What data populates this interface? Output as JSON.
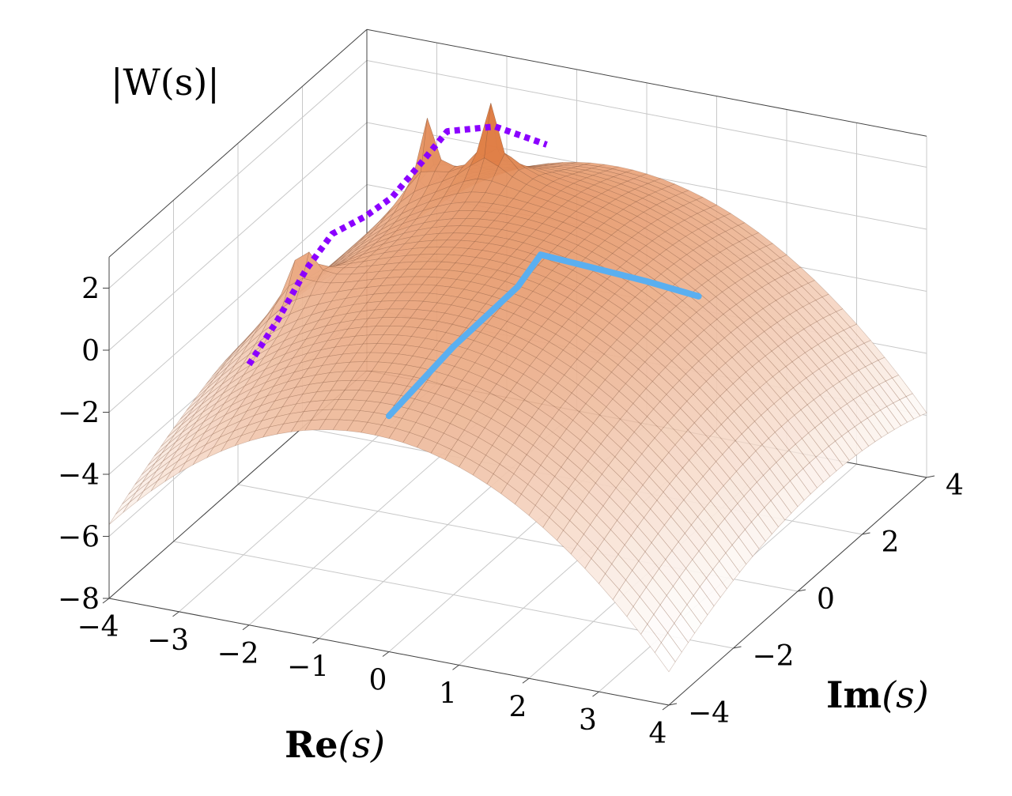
{
  "chart_data": {
    "type": "surface3d",
    "zlabel": "|W(s)|",
    "xlabel_bold": "Re",
    "xlabel_arg": "(s)",
    "ylabel_bold": "Im",
    "ylabel_arg": "(s)",
    "xlim": [
      -4,
      4
    ],
    "ylim": [
      -4,
      4
    ],
    "zlim": [
      -8,
      3
    ],
    "xticks": [
      "−4",
      "−3",
      "−2",
      "−1",
      "0",
      "1",
      "2",
      "3",
      "4"
    ],
    "yticks": [
      "−4",
      "−2",
      "0",
      "2",
      "4"
    ],
    "zticks": [
      "−8",
      "−6",
      "−4",
      "−2",
      "0",
      "2"
    ],
    "surface_colors": {
      "high": "#d9641f",
      "low": "#ffffff",
      "mesh": "#7a4a30"
    },
    "surface_peaks": [
      {
        "re": -2.9,
        "im": -0.4
      },
      {
        "re": -2.4,
        "im": 2.4
      },
      {
        "re": -1.4,
        "im": 2.2
      }
    ],
    "series": [
      {
        "style": "dotted",
        "color": "#8b00ff",
        "points": [
          {
            "re": -2.0,
            "im": -4.0,
            "z": 0.4
          },
          {
            "re": -2.05,
            "im": -3.0,
            "z": 0.9
          },
          {
            "re": -2.1,
            "im": -2.0,
            "z": 1.6
          },
          {
            "re": -2.1,
            "im": -1.2,
            "z": 2.0
          },
          {
            "re": -1.9,
            "im": -0.6,
            "z": 2.1
          },
          {
            "re": -1.8,
            "im": 0.0,
            "z": 2.2
          },
          {
            "re": -1.75,
            "im": 0.8,
            "z": 2.6
          },
          {
            "re": -1.7,
            "im": 1.5,
            "z": 3.0
          },
          {
            "re": -1.2,
            "im": 1.9,
            "z": 3.0
          },
          {
            "re": -0.6,
            "im": 2.2,
            "z": 2.4
          }
        ]
      },
      {
        "style": "solid",
        "color": "#5aaff0",
        "points": [
          {
            "re": 0.0,
            "im": -4.0,
            "z": -0.4
          },
          {
            "re": 0.0,
            "im": -2.0,
            "z": 0.0
          },
          {
            "re": 0.0,
            "im": 0.0,
            "z": 0.1
          },
          {
            "re": 0.05,
            "im": 0.6,
            "z": 0.6
          },
          {
            "re": 0.4,
            "im": 0.9,
            "z": 0.2
          },
          {
            "re": 1.2,
            "im": 1.4,
            "z": -0.5
          },
          {
            "re": 1.8,
            "im": 1.7,
            "z": -1.0
          }
        ]
      }
    ]
  }
}
